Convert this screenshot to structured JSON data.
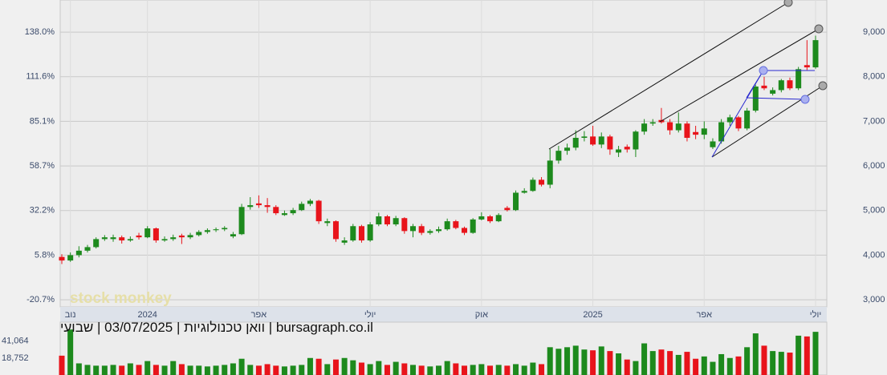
{
  "chart_data": {
    "type": "candlestick",
    "title": "bursagraph.co.il | וואן טכנולוגיות | 03/07/2025 | שבועי",
    "watermark": "stock monkey",
    "up_color": "#1d8a1d",
    "down_color": "#e8141b",
    "categories": [
      null,
      "נוב",
      null,
      null,
      null,
      null,
      null,
      null,
      null,
      null,
      "2024",
      null,
      null,
      null,
      null,
      null,
      null,
      null,
      null,
      null,
      null,
      null,
      null,
      "אפר",
      null,
      null,
      null,
      null,
      null,
      null,
      null,
      null,
      null,
      null,
      null,
      null,
      "יולי",
      null,
      null,
      null,
      null,
      null,
      null,
      null,
      null,
      null,
      null,
      null,
      null,
      "אוק",
      null,
      null,
      null,
      null,
      null,
      null,
      null,
      null,
      null,
      null,
      null,
      null,
      "2025",
      null,
      null,
      null,
      null,
      null,
      null,
      null,
      null,
      null,
      null,
      null,
      null,
      "אפר",
      null,
      null,
      null,
      null,
      null,
      null,
      null,
      null,
      null,
      null,
      null,
      null,
      "יולי"
    ],
    "open": [
      3960,
      3880,
      4000,
      4100,
      4180,
      4360,
      4360,
      4400,
      4330,
      4440,
      4400,
      4600,
      4330,
      4360,
      4440,
      4400,
      4450,
      4520,
      4560,
      4580,
      4420,
      4470,
      5080,
      5160,
      5120,
      5080,
      4900,
      4940,
      5010,
      5150,
      5220,
      4720,
      4760,
      4280,
      4330,
      4650,
      4330,
      4690,
      4870,
      4690,
      4830,
      4540,
      4650,
      4500,
      4540,
      4580,
      4760,
      4610,
      4500,
      4800,
      4870,
      4760,
      5060,
      5010,
      5400,
      5440,
      5690,
      5580,
      6120,
      6340,
      6410,
      6630,
      6660,
      6480,
      6660,
      6300,
      6430,
      6370,
      6770,
      6950,
      7030,
      6980,
      6800,
      6950,
      6760,
      6700,
      6420,
      6550,
      6980,
      7090,
      6840,
      7240,
      7800,
      7620,
      7700,
      7920,
      7740,
      8260,
      8210
    ],
    "high": [
      4020,
      4060,
      4200,
      4230,
      4400,
      4450,
      4460,
      4440,
      4420,
      4500,
      4650,
      4620,
      4420,
      4460,
      4480,
      4500,
      4560,
      4600,
      4620,
      4650,
      4520,
      5150,
      5300,
      5340,
      5280,
      5120,
      5000,
      5060,
      5200,
      5260,
      5240,
      4820,
      4780,
      4400,
      4700,
      4680,
      4740,
      4950,
      4900,
      4880,
      4850,
      4700,
      4700,
      4580,
      4640,
      4820,
      4790,
      4640,
      4830,
      4960,
      4900,
      4940,
      5100,
      5450,
      5500,
      5740,
      5750,
      6380,
      6450,
      6500,
      6800,
      6780,
      6900,
      6750,
      6700,
      6450,
      6480,
      6800,
      7050,
      7050,
      7300,
      7050,
      7200,
      7000,
      6900,
      7000,
      6620,
      7050,
      7150,
      7120,
      7300,
      7820,
      8000,
      7760,
      7950,
      7980,
      8220,
      8820,
      8920
    ],
    "low": [
      3800,
      3850,
      3950,
      4060,
      4150,
      4320,
      4300,
      4260,
      4300,
      4350,
      4380,
      4280,
      4300,
      4320,
      4250,
      4360,
      4420,
      4480,
      4520,
      4540,
      4380,
      4450,
      5020,
      5060,
      4950,
      4900,
      4880,
      4900,
      4990,
      5100,
      4700,
      4650,
      4300,
      4230,
      4300,
      4280,
      4300,
      4650,
      4650,
      4650,
      4480,
      4400,
      4450,
      4460,
      4500,
      4550,
      4580,
      4450,
      4480,
      4780,
      4720,
      4740,
      4980,
      4990,
      5380,
      5420,
      5540,
      5500,
      6050,
      6250,
      6350,
      6550,
      6450,
      6400,
      6250,
      6200,
      6300,
      6200,
      6700,
      6900,
      6950,
      6700,
      6750,
      6550,
      6600,
      6600,
      6380,
      6500,
      6900,
      6780,
      6800,
      7200,
      7700,
      7580,
      7650,
      7700,
      7700,
      8150,
      8180
    ],
    "close": [
      3880,
      4000,
      4100,
      4180,
      4360,
      4400,
      4400,
      4330,
      4360,
      4400,
      4600,
      4330,
      4360,
      4400,
      4400,
      4450,
      4520,
      4560,
      4580,
      4610,
      4470,
      5080,
      5120,
      5120,
      5080,
      4940,
      4940,
      5010,
      5150,
      5220,
      4760,
      4760,
      4360,
      4330,
      4650,
      4330,
      4690,
      4870,
      4690,
      4830,
      4540,
      4650,
      4500,
      4540,
      4580,
      4760,
      4610,
      4500,
      4800,
      4870,
      4760,
      4900,
      5010,
      5400,
      5440,
      5690,
      5580,
      6120,
      6340,
      6410,
      6630,
      6660,
      6480,
      6660,
      6370,
      6370,
      6370,
      6770,
      6950,
      6980,
      6980,
      6800,
      6950,
      6630,
      6700,
      6840,
      6550,
      6980,
      7090,
      6840,
      7240,
      7780,
      7740,
      7700,
      7920,
      7740,
      8170,
      8210,
      8820
    ],
    "volume": [
      22000,
      56000,
      12000,
      10000,
      9000,
      9000,
      10000,
      9000,
      12000,
      10000,
      15000,
      10000,
      9000,
      15000,
      11000,
      9000,
      9000,
      8000,
      9000,
      10000,
      12000,
      18000,
      10000,
      9000,
      11000,
      9000,
      8000,
      9000,
      10000,
      19000,
      18000,
      11000,
      17000,
      19000,
      16000,
      13000,
      11000,
      15000,
      10000,
      14000,
      12000,
      10000,
      9000,
      8000,
      9000,
      15000,
      12000,
      9000,
      10000,
      11000,
      9000,
      10000,
      9000,
      11000,
      9000,
      13000,
      11000,
      33000,
      31000,
      33000,
      35000,
      30000,
      29000,
      34000,
      28000,
      25000,
      17000,
      15000,
      38000,
      28000,
      30000,
      28000,
      23000,
      27000,
      18000,
      21000,
      14000,
      24000,
      19000,
      21000,
      33000,
      51000,
      35000,
      28000,
      27000,
      26000,
      48000,
      47000,
      53000
    ],
    "ylim": [
      2840,
      9720
    ],
    "yticks": [
      {
        "value": 3000,
        "label": "3,000"
      },
      {
        "value": 4000,
        "label": "4,000"
      },
      {
        "value": 5000,
        "label": "5,000"
      },
      {
        "value": 6000,
        "label": "6,000"
      },
      {
        "value": 7000,
        "label": "7,000"
      },
      {
        "value": 8000,
        "label": "8,000"
      },
      {
        "value": 9000,
        "label": "9,000"
      }
    ],
    "y2lim": [
      -24.9,
      157.1
    ],
    "y2ticks": [
      {
        "value": -20.7,
        "label": "-20.7%"
      },
      {
        "value": 5.8,
        "label": "5.8%"
      },
      {
        "value": 32.2,
        "label": "32.2%"
      },
      {
        "value": 58.7,
        "label": "58.7%"
      },
      {
        "value": 85.1,
        "label": "85.1%"
      },
      {
        "value": 111.6,
        "label": "111.6%"
      },
      {
        "value": 138.0,
        "label": "138.0%"
      }
    ],
    "volume_lim": [
      0,
      57300
    ],
    "volume_ticks": [
      {
        "value": 18752,
        "label": "18,752"
      },
      {
        "value": 41064,
        "label": "41,064"
      }
    ],
    "grid": true
  }
}
